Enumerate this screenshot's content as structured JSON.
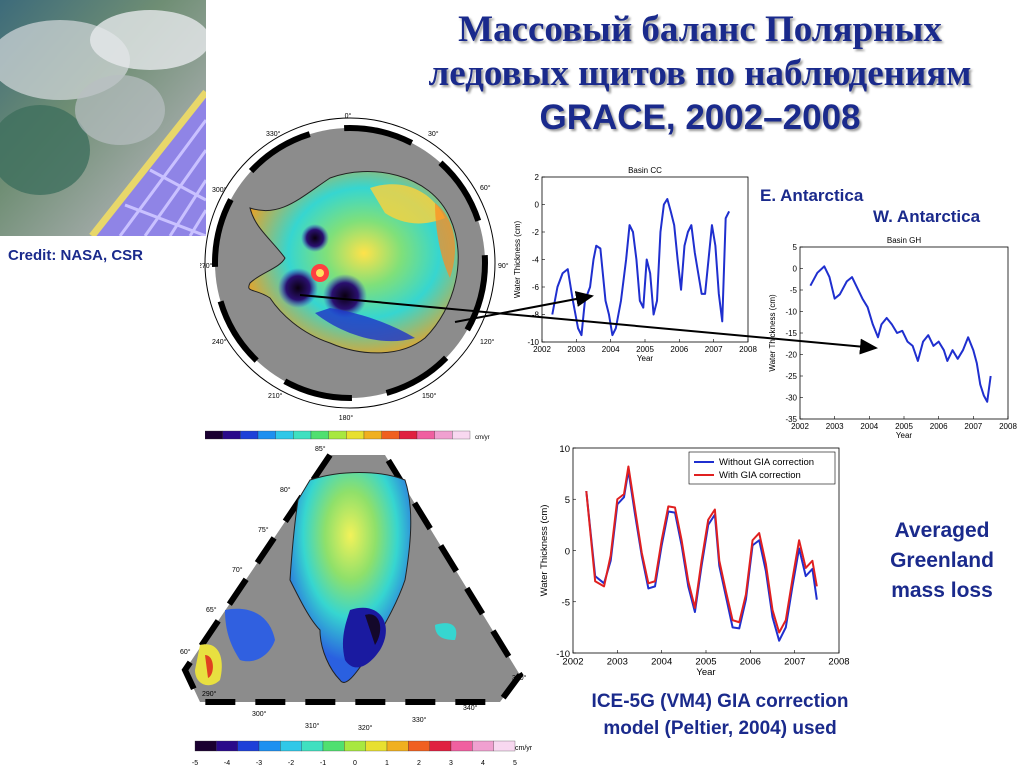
{
  "title": {
    "line1": "Массовый баланс Полярных",
    "line2": "ледовых щитов по наблюдениям",
    "line3": "GRACE, 2002–2008"
  },
  "credit": "Credit: NASA, CSR",
  "labels": {
    "e_antarctica": "E. Antarctica",
    "w_antarctica": "W. Antarctica",
    "greenland": "Averaged Greenland mass loss",
    "gia_caption": "ICE-5G (VM4) GIA correction model (Peltier, 2004) used"
  },
  "antarctica_map": {
    "colorbar_unit": "cm/yr",
    "lon_labels": [
      "0°",
      "30°",
      "60°",
      "90°",
      "120°",
      "150°",
      "180°",
      "210°",
      "240°",
      "270°",
      "300°",
      "330°"
    ]
  },
  "greenland_map": {
    "colorbar_unit": "cm/yr",
    "colorbar_ticks": [
      "-5",
      "-4",
      "-3",
      "-2",
      "-1",
      "0",
      "1",
      "2",
      "3",
      "4",
      "5"
    ],
    "lat_labels": [
      "85°",
      "80°",
      "75°",
      "70°",
      "65°",
      "60°"
    ],
    "lon_labels": [
      "290°",
      "300°",
      "310°",
      "320°",
      "330°",
      "340°",
      "350°"
    ]
  },
  "colors": {
    "title_blue": "#1a2a8c",
    "series_blue": "#1f2fcf",
    "series_red": "#e02020"
  },
  "chart_data": [
    {
      "type": "line",
      "title": "Basin CC",
      "xlabel": "Year",
      "ylabel": "Water Thickness (cm)",
      "xlim": [
        2002,
        2008
      ],
      "ylim": [
        -10,
        2
      ],
      "xticks": [
        2002,
        2003,
        2004,
        2005,
        2006,
        2007,
        2008
      ],
      "yticks": [
        2,
        0,
        -2,
        -4,
        -6,
        -8,
        -10
      ],
      "series": [
        {
          "color": "#1f2fcf",
          "x": [
            2002.3,
            2002.45,
            2002.6,
            2002.75,
            2002.9,
            2003.05,
            2003.15,
            2003.25,
            2003.4,
            2003.5,
            2003.58,
            2003.7,
            2003.85,
            2003.95,
            2004.05,
            2004.15,
            2004.3,
            2004.45,
            2004.55,
            2004.65,
            2004.75,
            2004.85,
            2004.95,
            2005.05,
            2005.15,
            2005.25,
            2005.35,
            2005.45,
            2005.55,
            2005.65,
            2005.75,
            2005.85,
            2005.95,
            2006.05,
            2006.15,
            2006.25,
            2006.35,
            2006.45,
            2006.55,
            2006.65,
            2006.75,
            2006.85,
            2006.95,
            2007.05,
            2007.15,
            2007.25,
            2007.35,
            2007.45
          ],
          "values": [
            -8,
            -6,
            -5,
            -4.7,
            -7,
            -9,
            -9.5,
            -7,
            -6,
            -4,
            -3,
            -3.2,
            -7,
            -8,
            -9.5,
            -9,
            -7,
            -4,
            -1.5,
            -2,
            -4,
            -7,
            -7.5,
            -4,
            -5,
            -8,
            -7,
            -2,
            0,
            0.4,
            -0.5,
            -1.5,
            -4,
            -6.2,
            -3,
            -2,
            -1.5,
            -3.5,
            -5,
            -6.5,
            -6.5,
            -4,
            -1.5,
            -3,
            -6.5,
            -8.5,
            -1,
            -0.5
          ]
        }
      ]
    },
    {
      "type": "line",
      "title": "Basin GH",
      "xlabel": "Year",
      "ylabel": "Water Thickness (cm)",
      "xlim": [
        2002,
        2008
      ],
      "ylim": [
        -35,
        5
      ],
      "xticks": [
        2002,
        2003,
        2004,
        2005,
        2006,
        2007,
        2008
      ],
      "yticks": [
        5,
        0,
        -5,
        -10,
        -15,
        -20,
        -25,
        -30,
        -35
      ],
      "series": [
        {
          "color": "#1f2fcf",
          "x": [
            2002.3,
            2002.5,
            2002.7,
            2002.85,
            2003.0,
            2003.15,
            2003.35,
            2003.5,
            2003.65,
            2003.8,
            2003.95,
            2004.1,
            2004.25,
            2004.35,
            2004.5,
            2004.65,
            2004.8,
            2004.95,
            2005.1,
            2005.25,
            2005.4,
            2005.55,
            2005.7,
            2005.85,
            2006.0,
            2006.15,
            2006.25,
            2006.4,
            2006.55,
            2006.7,
            2006.85,
            2007.0,
            2007.1,
            2007.2,
            2007.3,
            2007.4,
            2007.5
          ],
          "values": [
            -4,
            -1,
            0.5,
            -2,
            -7,
            -6,
            -3,
            -2,
            -4.5,
            -7,
            -9,
            -13,
            -16,
            -13,
            -11.5,
            -13,
            -15,
            -14.5,
            -17,
            -18,
            -21.5,
            -17,
            -15.5,
            -18,
            -17,
            -19,
            -21.5,
            -19,
            -21,
            -19,
            -16,
            -19,
            -22,
            -27,
            -29.5,
            -31,
            -25
          ]
        }
      ]
    },
    {
      "type": "line",
      "title": "",
      "xlabel": "Year",
      "ylabel": "Water Thickness (cm)",
      "xlim": [
        2002,
        2008
      ],
      "ylim": [
        -10,
        10
      ],
      "xticks": [
        2002,
        2003,
        2004,
        2005,
        2006,
        2007,
        2008
      ],
      "yticks": [
        10,
        5,
        0,
        -5,
        -10
      ],
      "legend": "top-right",
      "series": [
        {
          "name": "Without GIA correction",
          "color": "#1f2fcf",
          "x": [
            2002.3,
            2002.5,
            2002.7,
            2002.85,
            2003.0,
            2003.15,
            2003.25,
            2003.4,
            2003.55,
            2003.7,
            2003.85,
            2004.0,
            2004.15,
            2004.3,
            2004.45,
            2004.6,
            2004.75,
            2004.9,
            2005.05,
            2005.2,
            2005.3,
            2005.45,
            2005.6,
            2005.75,
            2005.9,
            2006.05,
            2006.2,
            2006.35,
            2006.5,
            2006.65,
            2006.8,
            2006.95,
            2007.1,
            2007.25,
            2007.4,
            2007.5
          ],
          "values": [
            5.8,
            -2.5,
            -3.2,
            -1,
            4.5,
            5.2,
            7.8,
            3.5,
            -0.5,
            -3.7,
            -3.5,
            0.5,
            3.8,
            3.7,
            0.5,
            -3.5,
            -6,
            -1.5,
            2.5,
            3.5,
            -1.5,
            -4.5,
            -7.5,
            -7.6,
            -4.8,
            0.5,
            1,
            -2,
            -6.5,
            -8.8,
            -7.5,
            -3.5,
            0.2,
            -2.5,
            -1.8,
            -4.8
          ]
        },
        {
          "name": "With GIA correction",
          "color": "#e02020",
          "x": [
            2002.3,
            2002.5,
            2002.7,
            2002.85,
            2003.0,
            2003.15,
            2003.25,
            2003.4,
            2003.55,
            2003.7,
            2003.85,
            2004.0,
            2004.15,
            2004.3,
            2004.45,
            2004.6,
            2004.75,
            2004.9,
            2005.05,
            2005.2,
            2005.3,
            2005.45,
            2005.6,
            2005.75,
            2005.9,
            2006.05,
            2006.2,
            2006.35,
            2006.5,
            2006.65,
            2006.8,
            2006.95,
            2007.1,
            2007.25,
            2007.4,
            2007.5
          ],
          "values": [
            5.8,
            -3,
            -3.5,
            -0.5,
            5,
            5.5,
            8.2,
            4,
            -0.2,
            -3.2,
            -3,
            1,
            4.3,
            4.2,
            1,
            -3,
            -5.6,
            -1,
            3,
            4,
            -1,
            -4,
            -6.8,
            -7,
            -4.3,
            1,
            1.7,
            -1.3,
            -5.8,
            -8,
            -6.8,
            -2.8,
            1,
            -1.7,
            -1,
            -3.5
          ]
        }
      ]
    }
  ]
}
